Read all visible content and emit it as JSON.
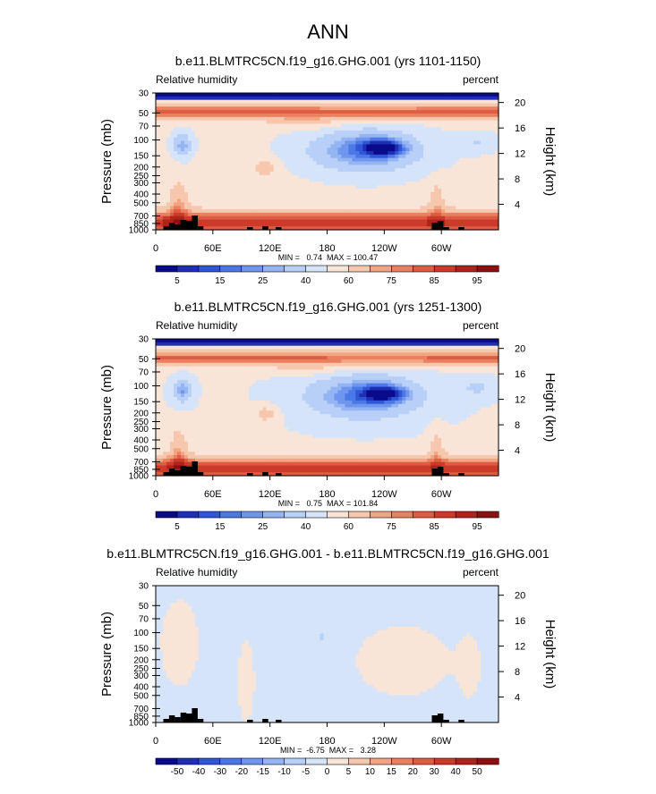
{
  "figure_title": "ANN",
  "chart_data": [
    {
      "type": "heatmap",
      "title": "b.e11.BLMTRC5CN.f19_g16.GHG.001 (yrs 1101-1150)",
      "left_label": "Relative humidity",
      "right_label": "percent",
      "ylabel": "Pressure (mb)",
      "ylabel_right": "Height (km)",
      "x_ticks": [
        "0",
        "60E",
        "120E",
        "180",
        "120W",
        "60W"
      ],
      "x_tick_lons": [
        0,
        60,
        120,
        180,
        240,
        300
      ],
      "xlim": [
        0,
        360
      ],
      "p_ticks": [
        "1000",
        "850",
        "700",
        "500",
        "400",
        "300",
        "250",
        "200",
        "150",
        "100",
        "70",
        "50",
        "30"
      ],
      "p_tick_values": [
        1000,
        850,
        700,
        500,
        400,
        300,
        250,
        200,
        150,
        100,
        70,
        50,
        30
      ],
      "height_ticks": [
        "4",
        "8",
        "12",
        "16",
        "20"
      ],
      "height_tick_values": [
        4,
        8,
        12,
        16,
        20
      ],
      "stats": "MIN =   0.74  MAX = 100.47",
      "min": 0.74,
      "max": 100.47,
      "colorbar_labels": [
        "5",
        "15",
        "25",
        "40",
        "60",
        "75",
        "85",
        "95"
      ],
      "colorbar_colors": [
        "#0a0a8c",
        "#1e2fb4",
        "#2f56d6",
        "#4b78e6",
        "#6f96ee",
        "#94b4f4",
        "#b8cff8",
        "#d6e4fa",
        "#f9e4d8",
        "#f7c7ad",
        "#f2a483",
        "#ea8060",
        "#de5c42",
        "#cc3a2a",
        "#b0221c",
        "#8c1010"
      ],
      "layout": "clim",
      "field": "rh1"
    },
    {
      "type": "heatmap",
      "title": "b.e11.BLMTRC5CN.f19_g16.GHG.001 (yrs 1251-1300)",
      "left_label": "Relative humidity",
      "right_label": "percent",
      "ylabel": "Pressure (mb)",
      "ylabel_right": "Height (km)",
      "x_ticks": [
        "0",
        "60E",
        "120E",
        "180",
        "120W",
        "60W"
      ],
      "x_tick_lons": [
        0,
        60,
        120,
        180,
        240,
        300
      ],
      "xlim": [
        0,
        360
      ],
      "p_ticks": [
        "1000",
        "850",
        "700",
        "500",
        "400",
        "300",
        "250",
        "200",
        "150",
        "100",
        "70",
        "50",
        "30"
      ],
      "p_tick_values": [
        1000,
        850,
        700,
        500,
        400,
        300,
        250,
        200,
        150,
        100,
        70,
        50,
        30
      ],
      "height_ticks": [
        "4",
        "8",
        "12",
        "16",
        "20"
      ],
      "height_tick_values": [
        4,
        8,
        12,
        16,
        20
      ],
      "stats": "MIN =   0.75  MAX = 101.84",
      "min": 0.75,
      "max": 101.84,
      "colorbar_labels": [
        "5",
        "15",
        "25",
        "40",
        "60",
        "75",
        "85",
        "95"
      ],
      "colorbar_colors": [
        "#0a0a8c",
        "#1e2fb4",
        "#2f56d6",
        "#4b78e6",
        "#6f96ee",
        "#94b4f4",
        "#b8cff8",
        "#d6e4fa",
        "#f9e4d8",
        "#f7c7ad",
        "#f2a483",
        "#ea8060",
        "#de5c42",
        "#cc3a2a",
        "#b0221c",
        "#8c1010"
      ],
      "layout": "clim",
      "field": "rh2"
    },
    {
      "type": "heatmap",
      "title": "b.e11.BLMTRC5CN.f19_g16.GHG.001 - b.e11.BLMTRC5CN.f19_g16.GHG.001",
      "left_label": "Relative humidity",
      "right_label": "percent",
      "ylabel": "Pressure (mb)",
      "ylabel_right": "Height (km)",
      "x_ticks": [
        "0",
        "60E",
        "120E",
        "180",
        "120W",
        "60W"
      ],
      "x_tick_lons": [
        0,
        60,
        120,
        180,
        240,
        300
      ],
      "xlim": [
        0,
        360
      ],
      "p_ticks": [
        "1000",
        "850",
        "700",
        "500",
        "400",
        "300",
        "250",
        "200",
        "150",
        "100",
        "70",
        "50",
        "30"
      ],
      "p_tick_values": [
        1000,
        850,
        700,
        500,
        400,
        300,
        250,
        200,
        150,
        100,
        70,
        50,
        30
      ],
      "height_ticks": [
        "4",
        "8",
        "12",
        "16",
        "20"
      ],
      "height_tick_values": [
        4,
        8,
        12,
        16,
        20
      ],
      "stats": "MIN =  -6.75  MAX =   3.28",
      "min": -6.75,
      "max": 3.28,
      "colorbar_labels": [
        "-50",
        "-40",
        "-30",
        "-20",
        "-15",
        "-10",
        "-5",
        "0",
        "5",
        "10",
        "15",
        "20",
        "30",
        "40",
        "50"
      ],
      "colorbar_colors": [
        "#0a0a8c",
        "#1e2fb4",
        "#2f56d6",
        "#4b78e6",
        "#6f96ee",
        "#94b4f4",
        "#b8cff8",
        "#d6e4fa",
        "#f9e4d8",
        "#f7c7ad",
        "#f2a483",
        "#ea8060",
        "#de5c42",
        "#cc3a2a",
        "#b0221c",
        "#8c1010"
      ],
      "layout": "diff",
      "field": "diff"
    }
  ]
}
